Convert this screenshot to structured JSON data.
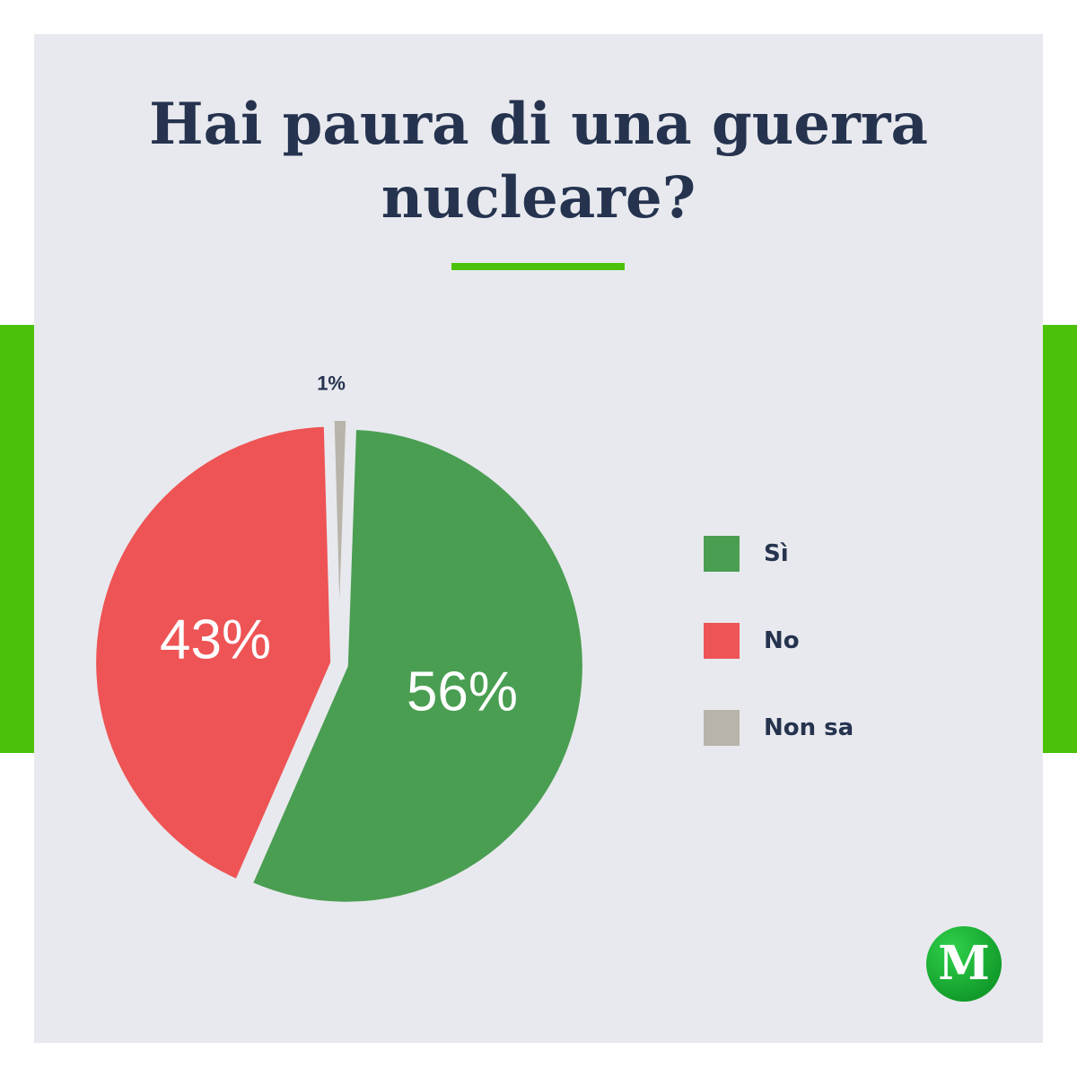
{
  "colors": {
    "accent_green": "#4cc10a",
    "card_background": "#e8e9ee",
    "title": "#25334f"
  },
  "logo": {
    "letter": "M"
  },
  "chart_data": {
    "type": "pie",
    "title": "Hai paura di una guerra nucleare?",
    "categories": [
      "Sì",
      "No",
      "Non sa"
    ],
    "values": [
      56,
      43,
      1
    ],
    "data_labels": [
      "56%",
      "43%",
      "1%"
    ],
    "colors": [
      "#4a9e52",
      "#ee5455",
      "#b8b4aa"
    ],
    "legend_position": "right"
  }
}
